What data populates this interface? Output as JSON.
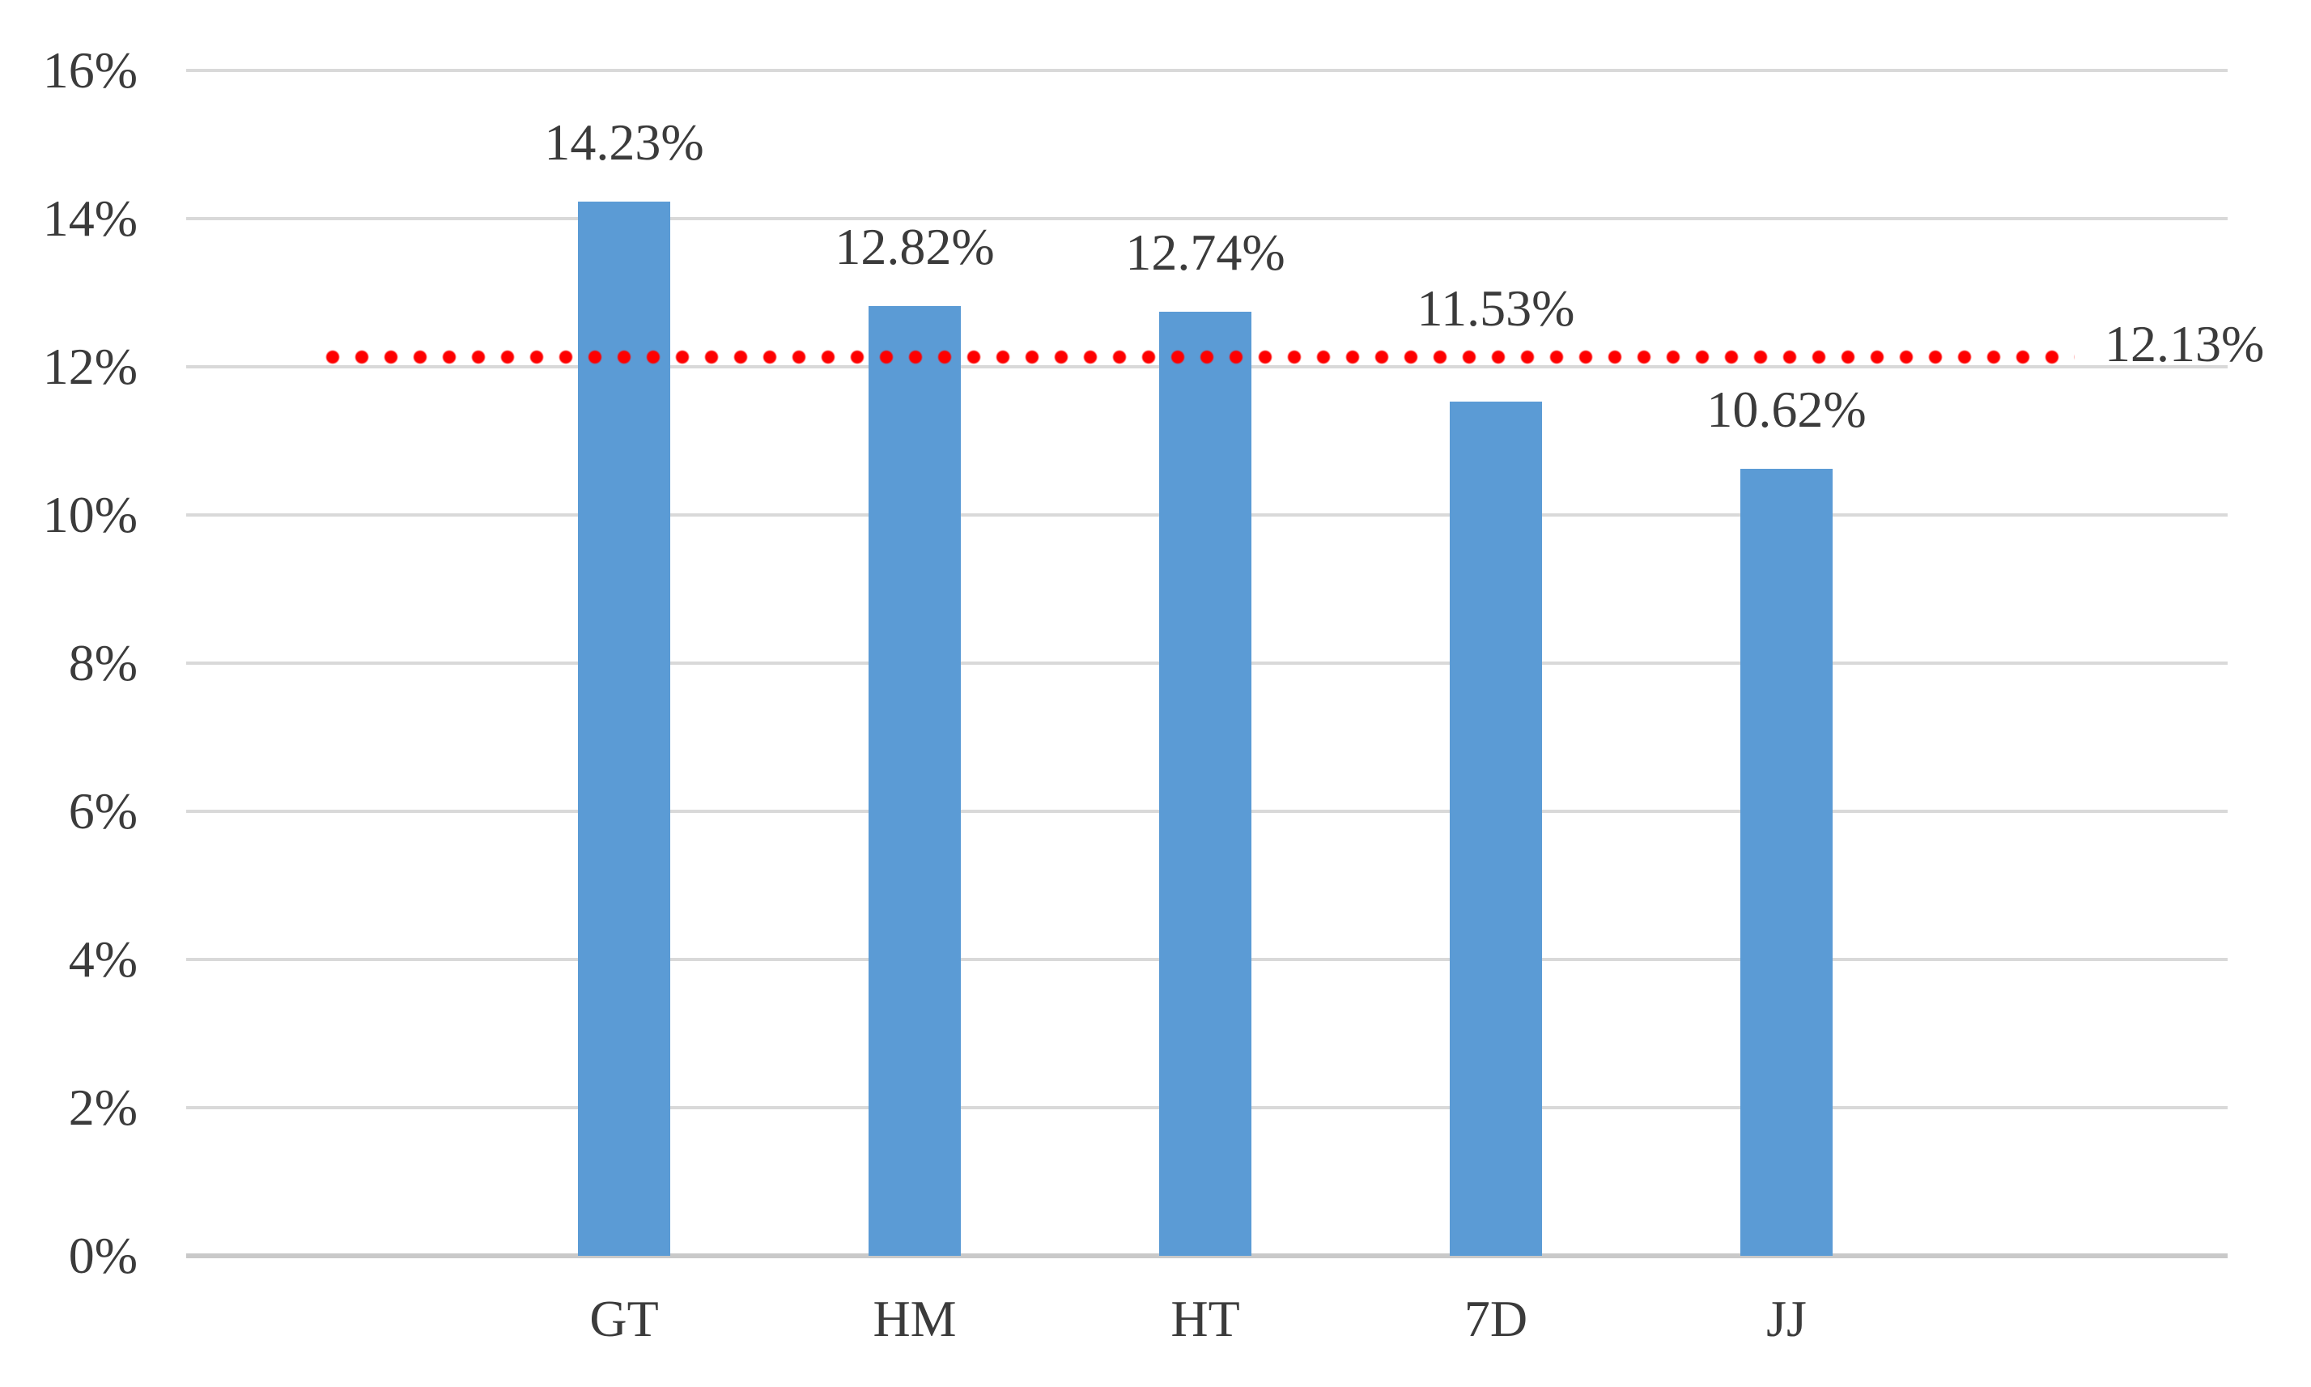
{
  "chart_data": {
    "type": "bar",
    "categories": [
      "GT",
      "HM",
      "HT",
      "7D",
      "JJ"
    ],
    "values": [
      14.23,
      12.82,
      12.74,
      11.53,
      10.62
    ],
    "data_labels": [
      "14.23%",
      "12.82%",
      "12.74%",
      "11.53%",
      "10.62%"
    ],
    "y_ticks": [
      "0%",
      "2%",
      "4%",
      "6%",
      "8%",
      "10%",
      "12%",
      "14%",
      "16%"
    ],
    "ylim": [
      0,
      16
    ],
    "y_step": 2,
    "grid": true,
    "legend": "none",
    "title": "",
    "xlabel": "",
    "ylabel": "",
    "reference_line": {
      "value": 12.13,
      "label": "12.13%",
      "style": "dotted",
      "color": "#fe0000"
    },
    "colors": {
      "bar": "#5b9bd5",
      "gridline": "#d9d9d9",
      "axis_line": "#c9c9c9",
      "text": "#3b3b3b",
      "background": "#ffffff"
    }
  }
}
